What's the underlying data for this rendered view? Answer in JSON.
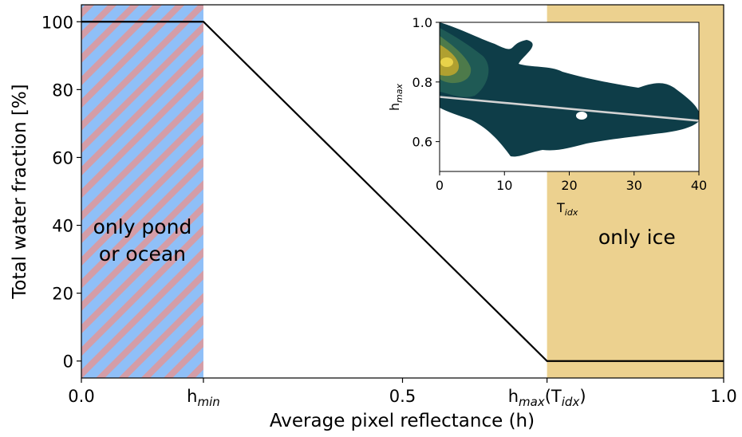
{
  "chart_data": [
    {
      "type": "line",
      "xlabel": "Average pixel reflectance (h)",
      "ylabel": "Total water fraction [%]",
      "xlim": [
        0.0,
        1.0
      ],
      "ylim": [
        -5,
        105
      ],
      "xticks": [
        {
          "value": 0.0,
          "label": "0.0"
        },
        {
          "value": 0.19,
          "label": "h",
          "sub": "min"
        },
        {
          "value": 0.5,
          "label": "0.5"
        },
        {
          "value": 0.725,
          "label": "h",
          "sub": "max",
          "tail": "(T",
          "sub2": "idx",
          "tail2": ")"
        },
        {
          "value": 1.0,
          "label": "1.0"
        }
      ],
      "yticks": [
        0,
        20,
        40,
        60,
        80,
        100
      ],
      "series": [
        {
          "x": [
            0.0,
            0.19,
            0.725,
            1.0
          ],
          "y": [
            100,
            100,
            0,
            0
          ],
          "color": "#000000"
        }
      ],
      "regions": [
        {
          "x0": 0.0,
          "x1": 0.19,
          "label_line1": "only pond",
          "label_line2": "or ocean",
          "fill": "#8fbff7",
          "stripe": "#d49da7"
        },
        {
          "x0": 0.725,
          "x1": 1.0,
          "label_line1": "only ice",
          "fill": "#ecd18f"
        }
      ]
    },
    {
      "type": "contour",
      "xlabel": "T",
      "xlabel_sub": "idx",
      "ylabel": "h",
      "ylabel_sub": "max",
      "xlim": [
        0,
        40
      ],
      "ylim": [
        0.5,
        1.0
      ],
      "xticks": [
        0,
        10,
        20,
        30,
        40
      ],
      "yticks": [
        0.6,
        0.8,
        1.0
      ],
      "yticklabels": [
        "0.6",
        "0.8",
        "1.0"
      ],
      "fit_line": {
        "x": [
          0,
          40
        ],
        "y": [
          0.75,
          0.67
        ],
        "color": "#d3d3d3"
      },
      "colors": {
        "outer": "#0e3d48",
        "mid": "#1f5a55",
        "mid2": "#4d7a4a",
        "high": "#b0a030",
        "peak": "#e8d24a"
      }
    }
  ]
}
